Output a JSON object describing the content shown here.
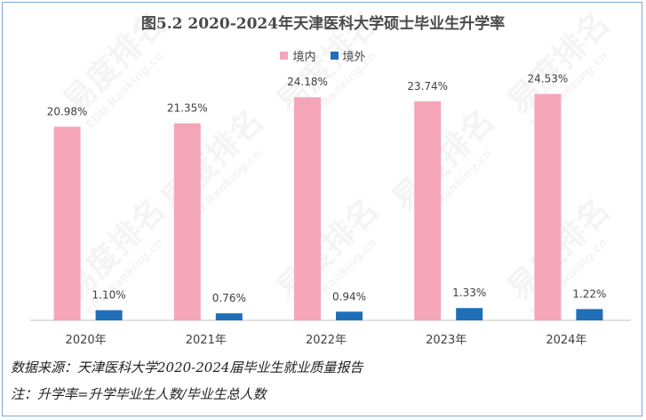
{
  "chart_data": {
    "type": "bar",
    "title": "图5.2  2020-2024年天津医科大学硕士毕业生升学率",
    "categories": [
      "2020年",
      "2021年",
      "2022年",
      "2023年",
      "2024年"
    ],
    "series": [
      {
        "name": "境内",
        "color": "#f4a6b8",
        "values": [
          20.98,
          21.35,
          24.18,
          23.74,
          24.53
        ],
        "labels": [
          "20.98%",
          "21.35%",
          "24.18%",
          "23.74%",
          "24.53%"
        ]
      },
      {
        "name": "境外",
        "color": "#1f6fb8",
        "values": [
          1.1,
          0.76,
          0.94,
          1.33,
          1.22
        ],
        "labels": [
          "1.10%",
          "0.76%",
          "0.94%",
          "1.33%",
          "1.22%"
        ]
      }
    ],
    "ylim": [
      0,
      27
    ],
    "grid": false,
    "legend_position": "top-center"
  },
  "notes": {
    "source": "数据来源：天津医科大学2020-2024届毕业生就业质量报告",
    "definition": "注：升学率=升学毕业生人数/毕业生总人数"
  },
  "watermark": {
    "brand": "易度排名",
    "sub": "EDU Ranking.cn"
  }
}
